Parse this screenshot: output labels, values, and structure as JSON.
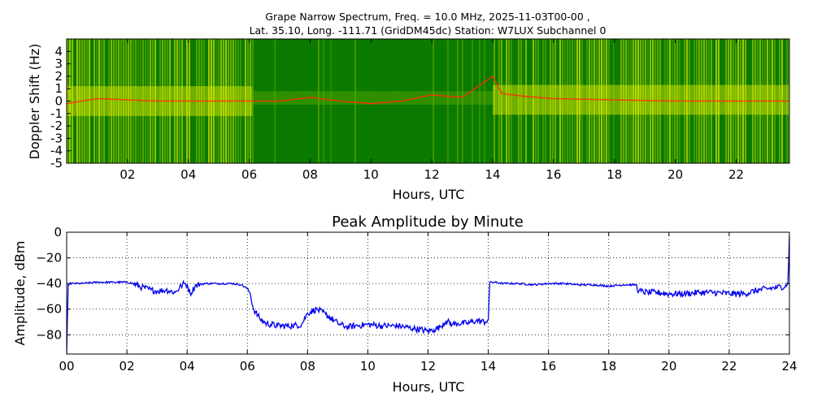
{
  "figure": {
    "title_line1": "Grape Narrow Spectrum, Freq. = 10.0 MHz, 2025-11-03T00-00 ,",
    "title_line2": "Lat.  35.10, Long. -111.71 (GridDM45dc) Station: W7LUX Subchannel 0"
  },
  "chart_data": [
    {
      "type": "heatmap",
      "title": "",
      "xlabel": "Hours, UTC",
      "ylabel": "Doppler Shift (Hz)",
      "xlim": [
        0,
        23.75
      ],
      "ylim": [
        -5,
        5
      ],
      "x_ticks": [
        {
          "value": 2,
          "label": "02"
        },
        {
          "value": 4,
          "label": "04"
        },
        {
          "value": 6,
          "label": "06"
        },
        {
          "value": 8,
          "label": "08"
        },
        {
          "value": 10,
          "label": "10"
        },
        {
          "value": 12,
          "label": "12"
        },
        {
          "value": 14,
          "label": "14"
        },
        {
          "value": 16,
          "label": "16"
        },
        {
          "value": 18,
          "label": "18"
        },
        {
          "value": 20,
          "label": "20"
        },
        {
          "value": 22,
          "label": "22"
        }
      ],
      "y_ticks": [
        {
          "value": 4,
          "label": "4"
        },
        {
          "value": 3,
          "label": "3"
        },
        {
          "value": 2,
          "label": "2"
        },
        {
          "value": 1,
          "label": "1"
        },
        {
          "value": 0,
          "label": "0"
        },
        {
          "value": -1,
          "label": "-1"
        },
        {
          "value": -2,
          "label": "-2"
        },
        {
          "value": -3,
          "label": "-3"
        },
        {
          "value": -4,
          "label": "-4"
        },
        {
          "value": -5,
          "label": "-5"
        }
      ],
      "colors": {
        "background": "#0b7a00",
        "mid": "#6fb700",
        "high": "#e8f000",
        "peak": "#ff3000"
      },
      "segments": [
        {
          "start": 0,
          "end": 6.1,
          "activity": "high",
          "carrier_doppler": 0.0
        },
        {
          "start": 6.1,
          "end": 14.0,
          "activity": "low",
          "carrier_doppler": 0.2
        },
        {
          "start": 14.0,
          "end": 23.75,
          "activity": "high",
          "carrier_doppler": 0.1
        }
      ],
      "doppler_trace": [
        [
          0.0,
          -0.2
        ],
        [
          0.5,
          0.0
        ],
        [
          1.0,
          0.2
        ],
        [
          2.0,
          0.1
        ],
        [
          3.0,
          0.0
        ],
        [
          4.0,
          0.0
        ],
        [
          5.0,
          0.0
        ],
        [
          6.0,
          0.0
        ],
        [
          7.0,
          0.0
        ],
        [
          8.0,
          0.3
        ],
        [
          9.0,
          0.0
        ],
        [
          10.0,
          -0.2
        ],
        [
          11.0,
          0.0
        ],
        [
          12.0,
          0.5
        ],
        [
          13.0,
          0.3
        ],
        [
          14.0,
          2.0
        ],
        [
          14.3,
          0.6
        ],
        [
          15.0,
          0.4
        ],
        [
          16.0,
          0.2
        ],
        [
          18.0,
          0.1
        ],
        [
          20.0,
          0.0
        ],
        [
          22.0,
          0.0
        ],
        [
          23.75,
          0.0
        ]
      ]
    },
    {
      "type": "line",
      "title": "Peak Amplitude by Minute",
      "xlabel": "Hours, UTC",
      "ylabel": "Amplitude, dBm",
      "xlim": [
        0,
        24
      ],
      "ylim": [
        -95,
        0
      ],
      "grid": true,
      "line_color": "#0000ee",
      "x_ticks": [
        {
          "value": 0,
          "label": "00"
        },
        {
          "value": 2,
          "label": "02"
        },
        {
          "value": 4,
          "label": "04"
        },
        {
          "value": 6,
          "label": "06"
        },
        {
          "value": 8,
          "label": "08"
        },
        {
          "value": 10,
          "label": "10"
        },
        {
          "value": 12,
          "label": "12"
        },
        {
          "value": 14,
          "label": "14"
        },
        {
          "value": 16,
          "label": "16"
        },
        {
          "value": 18,
          "label": "18"
        },
        {
          "value": 20,
          "label": "20"
        },
        {
          "value": 22,
          "label": "22"
        },
        {
          "value": 24,
          "label": "24"
        }
      ],
      "y_ticks": [
        {
          "value": 0,
          "label": "0"
        },
        {
          "value": -20,
          "label": "−20"
        },
        {
          "value": -40,
          "label": "−40"
        },
        {
          "value": -60,
          "label": "−60"
        },
        {
          "value": -80,
          "label": "−80"
        }
      ],
      "series": [
        {
          "x": [
            0.0,
            0.05,
            0.1,
            0.5,
            1.0,
            1.5,
            2.0,
            2.2,
            2.5,
            2.8,
            3.0,
            3.3,
            3.6,
            3.8,
            3.9,
            4.0,
            4.1,
            4.3,
            4.6,
            5.0,
            5.5,
            5.8,
            6.0,
            6.1,
            6.2,
            6.4,
            6.6,
            7.0,
            7.5,
            7.8,
            8.0,
            8.3,
            8.6,
            9.0,
            9.3,
            9.6,
            10.0,
            10.5,
            11.0,
            11.5,
            12.0,
            12.2,
            12.4,
            12.6,
            12.8,
            13.0,
            13.3,
            13.6,
            13.9,
            14.0,
            14.05,
            14.2,
            14.5,
            15.0,
            15.5,
            16.0,
            16.5,
            17.0,
            17.5,
            18.0,
            18.5,
            18.9,
            19.0,
            19.3,
            19.6,
            20.0,
            20.5,
            21.0,
            21.5,
            22.0,
            22.5,
            23.0,
            23.3,
            23.6,
            23.9,
            23.95,
            24.0
          ],
          "y": [
            -95,
            -41,
            -40,
            -40,
            -39,
            -39,
            -39,
            -40,
            -43,
            -45,
            -46,
            -45,
            -47,
            -42,
            -40,
            -41,
            -48,
            -41,
            -40,
            -40,
            -40,
            -41,
            -44,
            -48,
            -60,
            -67,
            -71,
            -73,
            -73,
            -72,
            -63,
            -60,
            -64,
            -71,
            -74,
            -73,
            -72,
            -73,
            -73,
            -75,
            -77,
            -76,
            -74,
            -69,
            -72,
            -71,
            -71,
            -69,
            -70,
            -68,
            -39,
            -39,
            -40,
            -40,
            -41,
            -40,
            -40,
            -41,
            -41,
            -42,
            -41,
            -41,
            -46,
            -47,
            -47,
            -48,
            -48,
            -47,
            -47,
            -48,
            -48,
            -45,
            -44,
            -43,
            -42,
            -40,
            -2
          ]
        }
      ]
    }
  ]
}
